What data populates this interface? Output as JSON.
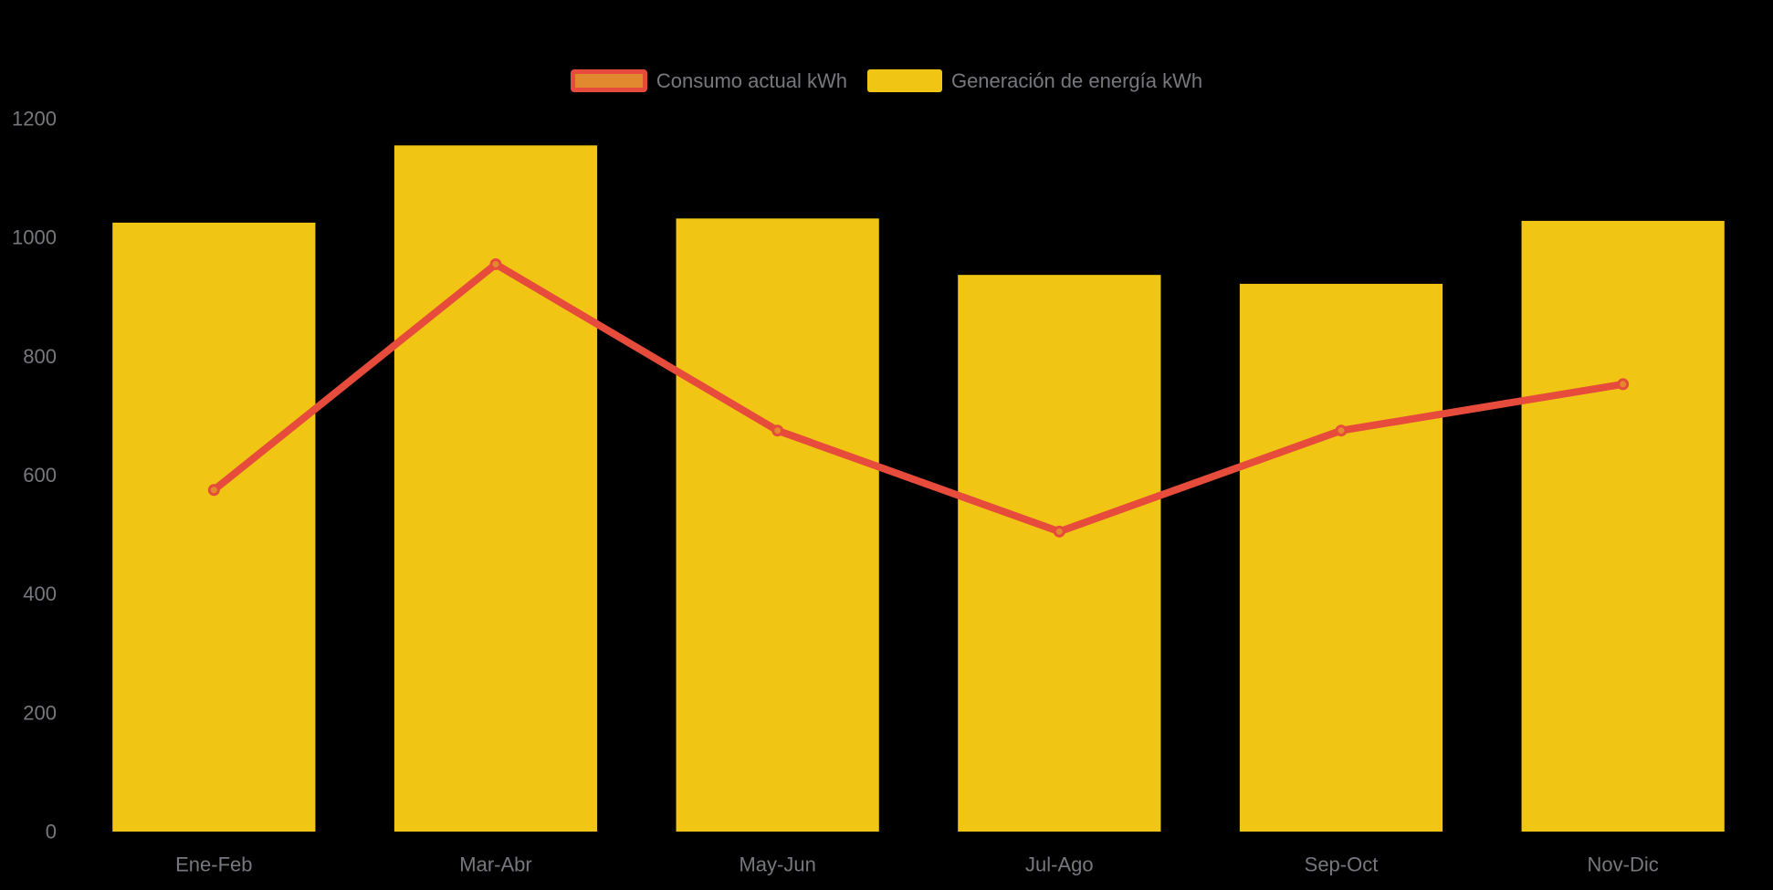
{
  "page": {
    "background_color": "#000000",
    "text_color": "#76787D"
  },
  "chart_data": {
    "type": "bar+line combo",
    "title": "",
    "xlabel": "",
    "ylabel": "",
    "categories": [
      "Ene-Feb",
      "Mar-Abr",
      "May-Jun",
      "Jul-Ago",
      "Sep-Oct",
      "Nov-Dic"
    ],
    "series": [
      {
        "name": "Consumo actual kWh",
        "type": "line",
        "values": [
          575,
          955,
          675,
          505,
          675,
          753
        ],
        "color": "#E64B3B",
        "marker_fill": "#E2882F"
      },
      {
        "name": "Generación de energía kWh",
        "type": "bar",
        "values": [
          1025,
          1155,
          1032,
          937,
          922,
          1028
        ],
        "color": "#F0C514"
      }
    ],
    "ylim": [
      0,
      1200
    ],
    "yticks": [
      0,
      200,
      400,
      600,
      800,
      1000,
      1200
    ],
    "grid": false,
    "legend_position": "top-center",
    "axis_label_color": "#76787D"
  }
}
